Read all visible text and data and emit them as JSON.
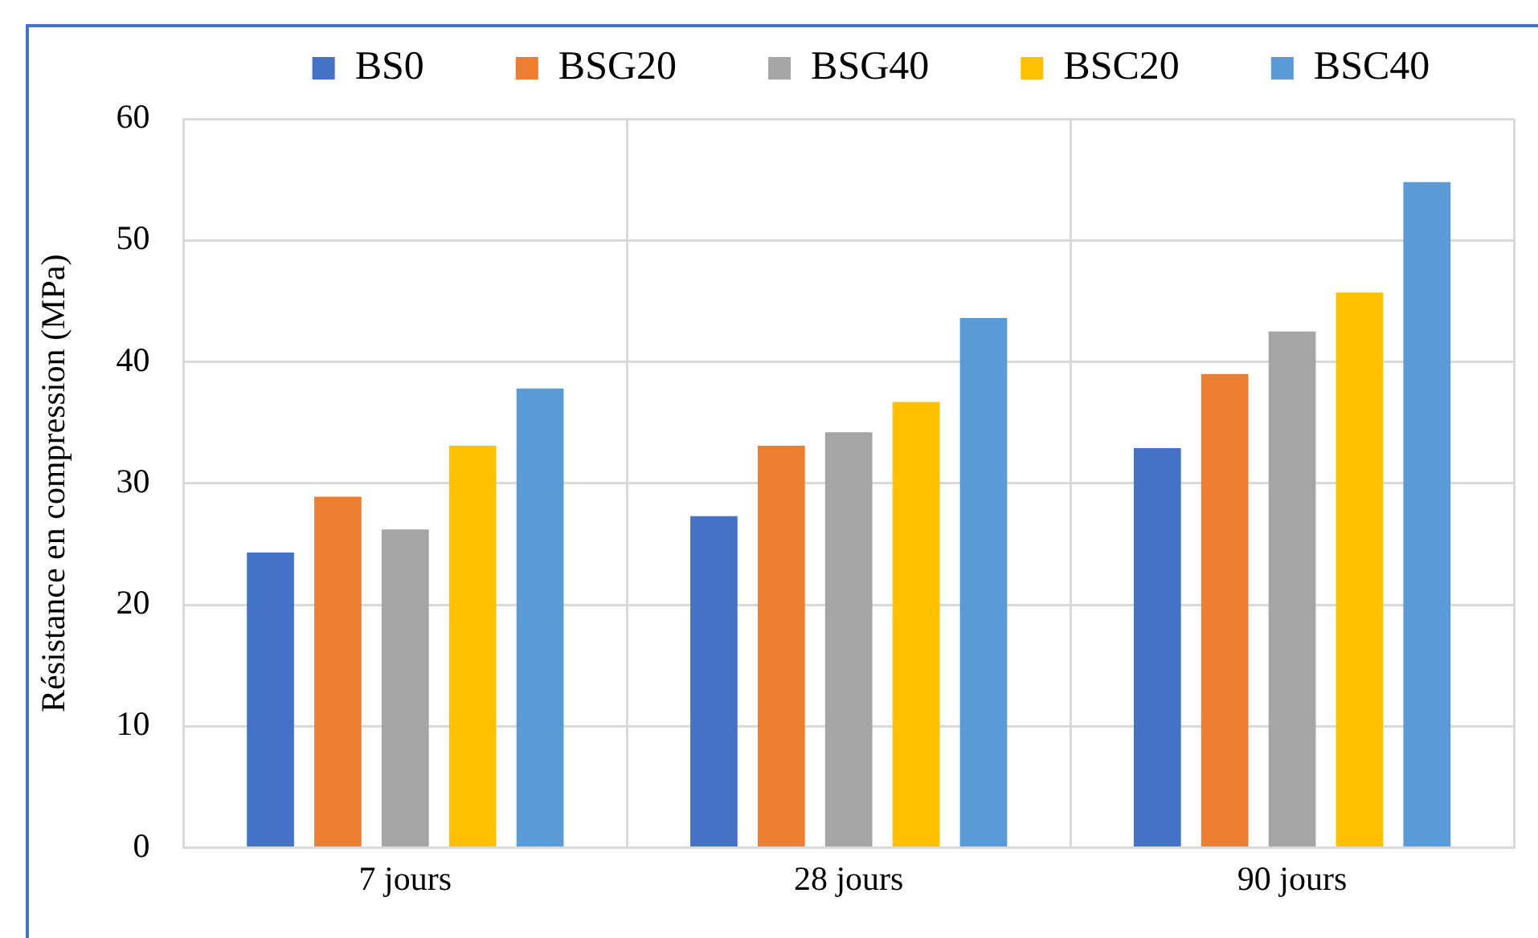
{
  "chart_data": {
    "type": "bar",
    "ylabel": "Résistance en compression (MPa)",
    "categories": [
      "7 jours",
      "28 jours",
      "90 jours"
    ],
    "series": [
      {
        "name": "BS0",
        "color": "#4472c4",
        "values": [
          24.3,
          27.3,
          32.9
        ]
      },
      {
        "name": "BSG20",
        "color": "#ed7d31",
        "values": [
          28.9,
          33.1,
          39.0
        ]
      },
      {
        "name": "BSG40",
        "color": "#a5a5a5",
        "values": [
          26.2,
          34.2,
          42.5
        ]
      },
      {
        "name": "BSC20",
        "color": "#ffc000",
        "values": [
          33.1,
          36.7,
          45.7
        ]
      },
      {
        "name": "BSC40",
        "color": "#5b9bd5",
        "values": [
          37.8,
          43.6,
          54.8
        ]
      }
    ],
    "ylim": [
      0,
      60
    ],
    "yticks": [
      0,
      10,
      20,
      30,
      40,
      50,
      60
    ],
    "grid": true,
    "legend": "top"
  }
}
